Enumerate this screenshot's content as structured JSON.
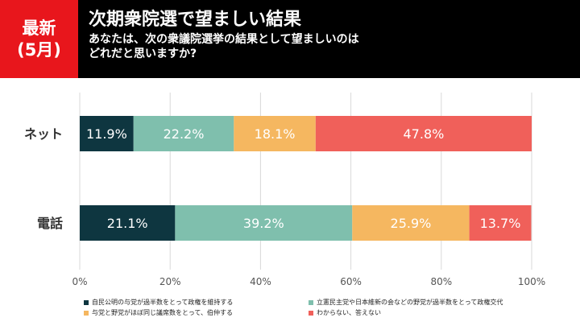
{
  "header": {
    "badge_line1": "最新",
    "badge_line2": "(5月)",
    "title": "次期衆院選で望ましい結果",
    "subtitle_line1": "あなたは、次の衆議院選挙の結果として望ましいのは",
    "subtitle_line2": "どれだと思いますか?"
  },
  "colors": {
    "header_bg": "#000000",
    "badge_bg": "#e8161c"
  },
  "chart_data": {
    "type": "bar",
    "orientation": "horizontal",
    "stacked": true,
    "categories": [
      "ネット",
      "電話"
    ],
    "xlim": [
      0,
      100
    ],
    "xticks": [
      "0%",
      "20%",
      "40%",
      "60%",
      "80%",
      "100%"
    ],
    "grid": true,
    "legend_position": "bottom",
    "series": [
      {
        "name": "自民公明の与党が過半数をとって政権を維持する",
        "values": [
          11.9,
          21.1
        ],
        "labels": [
          "11.9%",
          "21.1%"
        ],
        "color": "#0e3640"
      },
      {
        "name": "立憲民主党や日本維新の会などの野党が過半数をとって政権交代",
        "values": [
          22.2,
          39.2
        ],
        "labels": [
          "22.2%",
          "39.2%"
        ],
        "color": "#7fbfad"
      },
      {
        "name": "与党と野党がほぼ同じ議席数をとって、伯仲する",
        "values": [
          18.1,
          25.9
        ],
        "labels": [
          "18.1%",
          "25.9%"
        ],
        "color": "#f5b760"
      },
      {
        "name": "わからない、答えない",
        "values": [
          47.8,
          13.7
        ],
        "labels": [
          "47.8%",
          "13.7%"
        ],
        "color": "#f0605a"
      }
    ]
  }
}
